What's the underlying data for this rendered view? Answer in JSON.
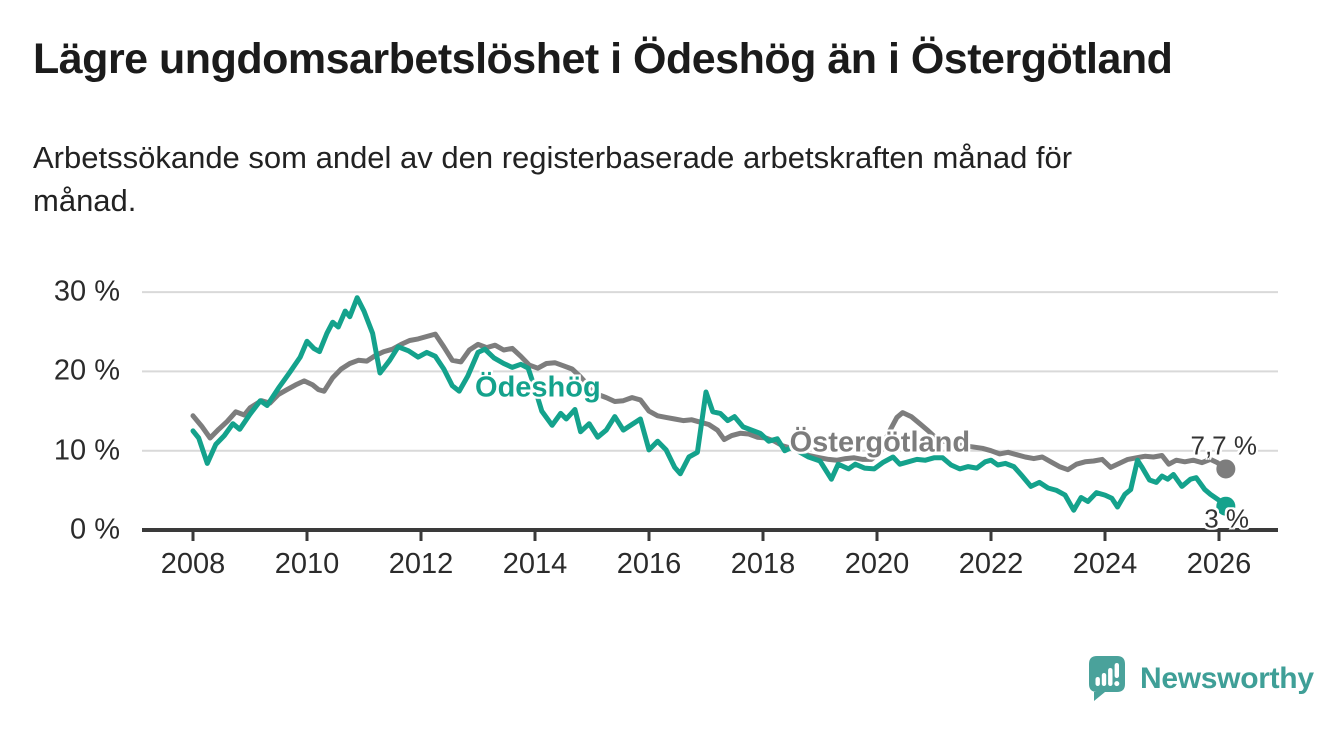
{
  "header": {
    "title": "Lägre ungdomsarbetslöshet i Ödeshög än i Östergötland",
    "subtitle_lines": [
      "Arbetssökande som andel av den registerbaserade arbetskraften månad för",
      "månad."
    ]
  },
  "chart_data": {
    "type": "line",
    "title": "Lägre ungdomsarbetslöshet i Ödeshög än i Östergötland",
    "subtitle": "Arbetssökande som andel av den registerbaserade arbetskraften månad för månad.",
    "xlabel": "",
    "ylabel": "",
    "x_unit": "decimal-year",
    "y_unit": "percent",
    "xlim": [
      2007.1,
      2027.1
    ],
    "ylim": [
      0,
      32
    ],
    "grid": "horizontal-light",
    "legend": "direct-labels-on-lines",
    "colors": {
      "odeshog": "#14a28c",
      "ostergotland": "#7d7d7d",
      "gridline": "#d9d9d9",
      "axis": "#3a3a3a",
      "axis_text": "#2b2b2b",
      "end_label_text": "#333333"
    },
    "yticks": [
      {
        "value": 0,
        "label": "0 %"
      },
      {
        "value": 10,
        "label": "10 %"
      },
      {
        "value": 20,
        "label": "20 %"
      },
      {
        "value": 30,
        "label": "30 %"
      }
    ],
    "xticks": [
      {
        "value": 2008,
        "label": "2008"
      },
      {
        "value": 2010,
        "label": "2010"
      },
      {
        "value": 2012,
        "label": "2012"
      },
      {
        "value": 2014,
        "label": "2014"
      },
      {
        "value": 2016,
        "label": "2016"
      },
      {
        "value": 2018,
        "label": "2018"
      },
      {
        "value": 2020,
        "label": "2020"
      },
      {
        "value": 2022,
        "label": "2022"
      },
      {
        "value": 2024,
        "label": "2024"
      },
      {
        "value": 2026,
        "label": "2026"
      }
    ],
    "series": [
      {
        "name": "Östergötland",
        "color": "#7d7d7d",
        "label_pos": {
          "x": 2020.05,
          "y": 11.0
        },
        "end_label": "7,7 %",
        "end_value": 7.7,
        "points": [
          [
            2008.0,
            14.4
          ],
          [
            2008.15,
            13.1
          ],
          [
            2008.3,
            11.6
          ],
          [
            2008.45,
            12.7
          ],
          [
            2008.6,
            13.7
          ],
          [
            2008.75,
            14.9
          ],
          [
            2008.9,
            14.5
          ],
          [
            2009.0,
            15.4
          ],
          [
            2009.2,
            16.3
          ],
          [
            2009.35,
            16.0
          ],
          [
            2009.5,
            17.1
          ],
          [
            2009.65,
            17.7
          ],
          [
            2009.8,
            18.3
          ],
          [
            2009.95,
            18.8
          ],
          [
            2010.1,
            18.3
          ],
          [
            2010.2,
            17.7
          ],
          [
            2010.3,
            17.5
          ],
          [
            2010.45,
            19.2
          ],
          [
            2010.6,
            20.3
          ],
          [
            2010.75,
            21.0
          ],
          [
            2010.9,
            21.4
          ],
          [
            2011.05,
            21.3
          ],
          [
            2011.2,
            22.0
          ],
          [
            2011.35,
            22.5
          ],
          [
            2011.5,
            22.8
          ],
          [
            2011.65,
            23.4
          ],
          [
            2011.8,
            23.9
          ],
          [
            2011.95,
            24.1
          ],
          [
            2012.1,
            24.4
          ],
          [
            2012.25,
            24.7
          ],
          [
            2012.4,
            23.1
          ],
          [
            2012.55,
            21.4
          ],
          [
            2012.7,
            21.2
          ],
          [
            2012.85,
            22.7
          ],
          [
            2013.0,
            23.4
          ],
          [
            2013.15,
            23.0
          ],
          [
            2013.3,
            23.3
          ],
          [
            2013.45,
            22.7
          ],
          [
            2013.6,
            22.9
          ],
          [
            2013.75,
            21.9
          ],
          [
            2013.9,
            20.8
          ],
          [
            2014.05,
            20.4
          ],
          [
            2014.2,
            21.0
          ],
          [
            2014.35,
            21.1
          ],
          [
            2014.5,
            20.7
          ],
          [
            2014.65,
            20.3
          ],
          [
            2014.8,
            19.3
          ],
          [
            2014.95,
            18.1
          ],
          [
            2015.1,
            17.1
          ],
          [
            2015.25,
            16.7
          ],
          [
            2015.4,
            16.2
          ],
          [
            2015.55,
            16.3
          ],
          [
            2015.7,
            16.7
          ],
          [
            2015.85,
            16.4
          ],
          [
            2016.0,
            15.0
          ],
          [
            2016.15,
            14.4
          ],
          [
            2016.3,
            14.2
          ],
          [
            2016.45,
            14.0
          ],
          [
            2016.6,
            13.8
          ],
          [
            2016.75,
            13.9
          ],
          [
            2016.9,
            13.6
          ],
          [
            2017.05,
            13.3
          ],
          [
            2017.2,
            12.6
          ],
          [
            2017.32,
            11.4
          ],
          [
            2017.45,
            11.9
          ],
          [
            2017.6,
            12.2
          ],
          [
            2017.75,
            12.1
          ],
          [
            2017.9,
            11.7
          ],
          [
            2018.05,
            11.6
          ],
          [
            2018.2,
            11.2
          ],
          [
            2018.35,
            10.6
          ],
          [
            2018.5,
            10.3
          ],
          [
            2018.65,
            9.9
          ],
          [
            2018.8,
            9.4
          ],
          [
            2019.0,
            9.1
          ],
          [
            2019.15,
            8.9
          ],
          [
            2019.3,
            8.8
          ],
          [
            2019.45,
            9.0
          ],
          [
            2019.6,
            9.1
          ],
          [
            2019.75,
            8.9
          ],
          [
            2019.9,
            8.9
          ],
          [
            2020.05,
            9.7
          ],
          [
            2020.2,
            12.2
          ],
          [
            2020.35,
            14.2
          ],
          [
            2020.45,
            14.8
          ],
          [
            2020.6,
            14.3
          ],
          [
            2020.75,
            13.4
          ],
          [
            2020.9,
            12.5
          ],
          [
            2021.05,
            11.5
          ],
          [
            2021.25,
            11.0
          ],
          [
            2021.45,
            10.7
          ],
          [
            2021.65,
            10.5
          ],
          [
            2021.85,
            10.3
          ],
          [
            2022.0,
            10.0
          ],
          [
            2022.15,
            9.6
          ],
          [
            2022.3,
            9.8
          ],
          [
            2022.45,
            9.5
          ],
          [
            2022.6,
            9.2
          ],
          [
            2022.75,
            9.0
          ],
          [
            2022.9,
            9.2
          ],
          [
            2023.05,
            8.6
          ],
          [
            2023.2,
            8.0
          ],
          [
            2023.35,
            7.6
          ],
          [
            2023.5,
            8.3
          ],
          [
            2023.65,
            8.6
          ],
          [
            2023.8,
            8.7
          ],
          [
            2023.95,
            8.9
          ],
          [
            2024.1,
            7.9
          ],
          [
            2024.25,
            8.4
          ],
          [
            2024.4,
            8.9
          ],
          [
            2024.55,
            9.1
          ],
          [
            2024.7,
            9.3
          ],
          [
            2024.85,
            9.2
          ],
          [
            2025.0,
            9.4
          ],
          [
            2025.12,
            8.3
          ],
          [
            2025.25,
            8.8
          ],
          [
            2025.4,
            8.6
          ],
          [
            2025.55,
            8.8
          ],
          [
            2025.7,
            8.5
          ],
          [
            2025.85,
            8.9
          ],
          [
            2025.97,
            8.5
          ],
          [
            2026.06,
            8.0
          ],
          [
            2026.12,
            7.7
          ]
        ]
      },
      {
        "name": "Ödeshög",
        "color": "#14a28c",
        "label_pos": {
          "x": 2014.05,
          "y": 17.9
        },
        "end_label": "3 %",
        "end_value": 3.0,
        "points": [
          [
            2008.0,
            12.5
          ],
          [
            2008.1,
            11.6
          ],
          [
            2008.25,
            8.4
          ],
          [
            2008.4,
            10.8
          ],
          [
            2008.55,
            11.9
          ],
          [
            2008.7,
            13.4
          ],
          [
            2008.82,
            12.7
          ],
          [
            2009.0,
            14.6
          ],
          [
            2009.18,
            16.3
          ],
          [
            2009.3,
            15.7
          ],
          [
            2009.5,
            17.9
          ],
          [
            2009.7,
            19.9
          ],
          [
            2009.88,
            21.8
          ],
          [
            2010.0,
            23.8
          ],
          [
            2010.12,
            22.9
          ],
          [
            2010.22,
            22.5
          ],
          [
            2010.35,
            24.8
          ],
          [
            2010.45,
            26.2
          ],
          [
            2010.55,
            25.6
          ],
          [
            2010.67,
            27.6
          ],
          [
            2010.75,
            26.9
          ],
          [
            2010.88,
            29.3
          ],
          [
            2011.0,
            27.6
          ],
          [
            2011.15,
            24.8
          ],
          [
            2011.28,
            19.8
          ],
          [
            2011.45,
            21.4
          ],
          [
            2011.6,
            23.1
          ],
          [
            2011.78,
            22.6
          ],
          [
            2011.95,
            21.8
          ],
          [
            2012.1,
            22.4
          ],
          [
            2012.25,
            21.9
          ],
          [
            2012.4,
            20.3
          ],
          [
            2012.55,
            18.2
          ],
          [
            2012.67,
            17.5
          ],
          [
            2012.82,
            19.4
          ],
          [
            2013.0,
            22.4
          ],
          [
            2013.12,
            22.8
          ],
          [
            2013.28,
            21.7
          ],
          [
            2013.45,
            21.0
          ],
          [
            2013.6,
            20.5
          ],
          [
            2013.75,
            20.9
          ],
          [
            2013.88,
            20.4
          ],
          [
            2014.0,
            17.8
          ],
          [
            2014.12,
            15.0
          ],
          [
            2014.3,
            13.2
          ],
          [
            2014.45,
            14.7
          ],
          [
            2014.55,
            14.0
          ],
          [
            2014.7,
            15.2
          ],
          [
            2014.8,
            12.4
          ],
          [
            2014.95,
            13.4
          ],
          [
            2015.1,
            11.7
          ],
          [
            2015.25,
            12.6
          ],
          [
            2015.4,
            14.3
          ],
          [
            2015.55,
            12.6
          ],
          [
            2015.7,
            13.3
          ],
          [
            2015.85,
            14.0
          ],
          [
            2016.0,
            10.1
          ],
          [
            2016.15,
            11.2
          ],
          [
            2016.3,
            10.1
          ],
          [
            2016.45,
            7.9
          ],
          [
            2016.55,
            7.1
          ],
          [
            2016.7,
            9.2
          ],
          [
            2016.85,
            9.8
          ],
          [
            2017.0,
            17.4
          ],
          [
            2017.12,
            14.9
          ],
          [
            2017.25,
            14.7
          ],
          [
            2017.38,
            13.8
          ],
          [
            2017.5,
            14.3
          ],
          [
            2017.65,
            13.0
          ],
          [
            2017.8,
            12.6
          ],
          [
            2017.95,
            12.2
          ],
          [
            2018.1,
            11.2
          ],
          [
            2018.25,
            11.5
          ],
          [
            2018.38,
            10.0
          ],
          [
            2018.5,
            10.4
          ],
          [
            2018.65,
            9.8
          ],
          [
            2018.8,
            9.2
          ],
          [
            2019.0,
            8.7
          ],
          [
            2019.2,
            6.4
          ],
          [
            2019.32,
            8.3
          ],
          [
            2019.5,
            7.7
          ],
          [
            2019.62,
            8.3
          ],
          [
            2019.78,
            7.8
          ],
          [
            2019.95,
            7.7
          ],
          [
            2020.1,
            8.5
          ],
          [
            2020.28,
            9.2
          ],
          [
            2020.4,
            8.3
          ],
          [
            2020.55,
            8.6
          ],
          [
            2020.7,
            8.9
          ],
          [
            2020.85,
            8.8
          ],
          [
            2021.0,
            9.1
          ],
          [
            2021.15,
            9.1
          ],
          [
            2021.3,
            8.2
          ],
          [
            2021.45,
            7.7
          ],
          [
            2021.6,
            8.0
          ],
          [
            2021.75,
            7.8
          ],
          [
            2021.9,
            8.6
          ],
          [
            2022.0,
            8.8
          ],
          [
            2022.12,
            8.2
          ],
          [
            2022.25,
            8.4
          ],
          [
            2022.4,
            8.0
          ],
          [
            2022.55,
            6.8
          ],
          [
            2022.7,
            5.5
          ],
          [
            2022.85,
            6.0
          ],
          [
            2023.0,
            5.3
          ],
          [
            2023.15,
            5.0
          ],
          [
            2023.3,
            4.4
          ],
          [
            2023.45,
            2.5
          ],
          [
            2023.58,
            4.1
          ],
          [
            2023.7,
            3.6
          ],
          [
            2023.85,
            4.7
          ],
          [
            2024.0,
            4.4
          ],
          [
            2024.12,
            4.0
          ],
          [
            2024.22,
            2.9
          ],
          [
            2024.35,
            4.5
          ],
          [
            2024.45,
            5.1
          ],
          [
            2024.57,
            8.8
          ],
          [
            2024.65,
            7.9
          ],
          [
            2024.78,
            6.3
          ],
          [
            2024.9,
            6.0
          ],
          [
            2025.0,
            6.8
          ],
          [
            2025.1,
            6.4
          ],
          [
            2025.2,
            7.0
          ],
          [
            2025.35,
            5.5
          ],
          [
            2025.5,
            6.4
          ],
          [
            2025.6,
            6.6
          ],
          [
            2025.75,
            5.1
          ],
          [
            2025.85,
            4.5
          ],
          [
            2025.95,
            4.0
          ],
          [
            2026.05,
            3.5
          ],
          [
            2026.12,
            3.0
          ]
        ]
      }
    ]
  },
  "branding": {
    "name": "Newsworthy",
    "color": "#3f9f97",
    "icon": "newsworthy-speech-bubble-bar-chart-icon",
    "icon_color": "#4aa29b"
  }
}
